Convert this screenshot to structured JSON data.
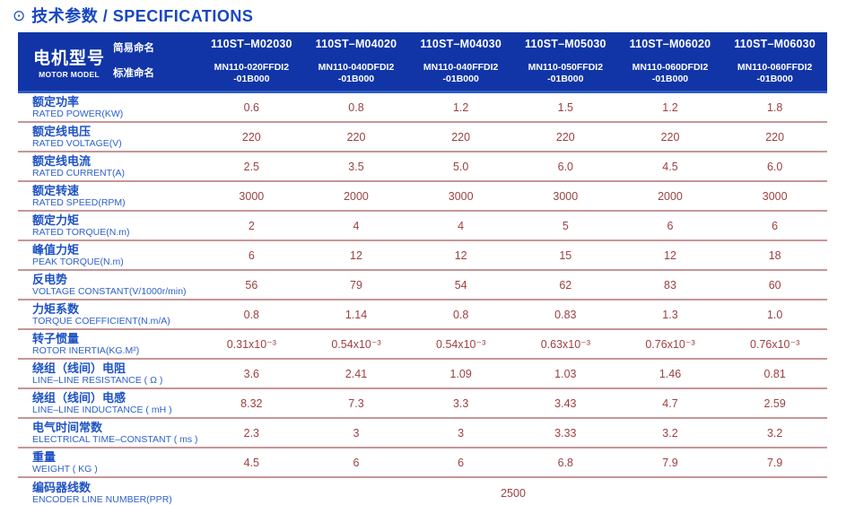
{
  "colors": {
    "header_bg": "#1135a7",
    "header_bg_edge": "#2f5ec4",
    "title_blue": "#1747c2",
    "label_cn": "#1d52c4",
    "label_en": "#2e60cc",
    "value_red": "#9c3f41",
    "divider": "#c79597",
    "header_text": "#ffffff"
  },
  "title": {
    "icon": "⊙",
    "text": "技术参数 / SPECIFICATIONS"
  },
  "table": {
    "header": {
      "motor_model_cn": "电机型号",
      "motor_model_en": "MOTOR MODEL",
      "simple_name_label": "简易命名",
      "standard_name_label": "标准命名",
      "models": [
        {
          "simple": "110ST–M02030",
          "standard_line1": "MN110-020FFDI2",
          "standard_line2": "-01B000"
        },
        {
          "simple": "110ST–M04020",
          "standard_line1": "MN110-040DFDI2",
          "standard_line2": "-01B000"
        },
        {
          "simple": "110ST–M04030",
          "standard_line1": "MN110-040FFDI2",
          "standard_line2": "-01B000"
        },
        {
          "simple": "110ST–M05030",
          "standard_line1": "MN110-050FFDI2",
          "standard_line2": "-01B000"
        },
        {
          "simple": "110ST–M06020",
          "standard_line1": "MN110-060DFDI2",
          "standard_line2": "-01B000"
        },
        {
          "simple": "110ST–M06030",
          "standard_line1": "MN110-060FFDI2",
          "standard_line2": "-01B000"
        }
      ]
    },
    "rows": [
      {
        "cn": "额定功率",
        "en": "RATED POWER(KW)",
        "values": [
          "0.6",
          "0.8",
          "1.2",
          "1.5",
          "1.2",
          "1.8"
        ]
      },
      {
        "cn": "额定线电压",
        "en": "RATED VOLTAGE(V)",
        "values": [
          "220",
          "220",
          "220",
          "220",
          "220",
          "220"
        ]
      },
      {
        "cn": "额定线电流",
        "en": "RATED CURRENT(A)",
        "values": [
          "2.5",
          "3.5",
          "5.0",
          "6.0",
          "4.5",
          "6.0"
        ]
      },
      {
        "cn": "额定转速",
        "en": "RATED SPEED(RPM)",
        "values": [
          "3000",
          "2000",
          "3000",
          "3000",
          "2000",
          "3000"
        ]
      },
      {
        "cn": "额定力矩",
        "en": "RATED TORQUE(N.m)",
        "values": [
          "2",
          "4",
          "4",
          "5",
          "6",
          "6"
        ]
      },
      {
        "cn": "峰值力矩",
        "en": "PEAK TORQUE(N.m)",
        "values": [
          "6",
          "12",
          "12",
          "15",
          "12",
          "18"
        ]
      },
      {
        "cn": "反电势",
        "en": "VOLTAGE CONSTANT(V/1000r/min)",
        "values": [
          "56",
          "79",
          "54",
          "62",
          "83",
          "60"
        ]
      },
      {
        "cn": "力矩系数",
        "en": "TORQUE COEFFICIENT(N.m/A)",
        "values": [
          "0.8",
          "1.14",
          "0.8",
          "0.83",
          "1.3",
          "1.0"
        ]
      },
      {
        "cn": "转子惯量",
        "en": "ROTOR INERTIA(KG.M²)",
        "values": [
          "0.31x10⁻³",
          "0.54x10⁻³",
          "0.54x10⁻³",
          "0.63x10⁻³",
          "0.76x10⁻³",
          "0.76x10⁻³"
        ]
      },
      {
        "cn": "绕组（线间）电阻",
        "en": "LINE–LINE RESISTANCE ( Ω )",
        "values": [
          "3.6",
          "2.41",
          "1.09",
          "1.03",
          "1.46",
          "0.81"
        ]
      },
      {
        "cn": "绕组（线间）电感",
        "en": "LINE–LINE INDUCTANCE ( mH )",
        "values": [
          "8.32",
          "7.3",
          "3.3",
          "3.43",
          "4.7",
          "2.59"
        ]
      },
      {
        "cn": "电气时间常数",
        "en": "ELECTRICAL TIME–CONSTANT ( ms )",
        "values": [
          "2.3",
          "3",
          "3",
          "3.33",
          "3.2",
          "3.2"
        ]
      },
      {
        "cn": "重量",
        "en": "WEIGHT ( KG )",
        "values": [
          "4.5",
          "6",
          "6",
          "6.8",
          "7.9",
          "7.9"
        ]
      }
    ],
    "encoder_row": {
      "cn": "编码器线数",
      "en": "ENCODER LINE NUMBER(PPR)",
      "value": "2500"
    }
  }
}
